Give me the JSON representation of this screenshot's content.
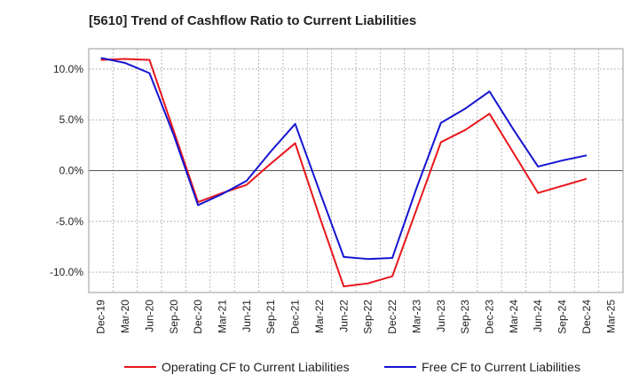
{
  "chart_data": {
    "type": "line",
    "title": "[5610]  Trend of Cashflow Ratio to Current Liabilities",
    "x": [
      "Dec-19",
      "Mar-20",
      "Jun-20",
      "Sep-20",
      "Dec-20",
      "Mar-21",
      "Jun-21",
      "Sep-21",
      "Dec-21",
      "Mar-22",
      "Jun-22",
      "Sep-22",
      "Dec-22",
      "Mar-23",
      "Jun-23",
      "Sep-23",
      "Dec-23",
      "Mar-24",
      "Jun-24",
      "Sep-24",
      "Dec-24",
      "Mar-25"
    ],
    "xlabel": "",
    "ylabel": "",
    "ylim": [
      -12.0,
      12.0
    ],
    "yticks": [
      10.0,
      5.0,
      0.0,
      -5.0,
      -10.0
    ],
    "ytick_labels": [
      "10.0%",
      "5.0%",
      "0.0%",
      "-5.0%",
      "-10.0%"
    ],
    "grid": true,
    "legend_position": "bottom",
    "series": [
      {
        "name": "Operating CF to Current Liabilities",
        "color": "#e8161b",
        "values": [
          10.9,
          11.0,
          10.9,
          3.9,
          -3.1,
          -2.2,
          -1.4,
          0.7,
          2.7,
          -4.5,
          -11.4,
          -11.1,
          -10.4,
          -3.8,
          2.8,
          4.0,
          5.6,
          1.7,
          -2.2,
          -1.5,
          -0.8,
          null
        ]
      },
      {
        "name": "Free CF to Current Liabilities",
        "color": "#1414d2",
        "values": [
          11.1,
          10.6,
          9.6,
          3.5,
          -3.4,
          -2.3,
          -1.0,
          1.9,
          4.6,
          -2.0,
          -8.5,
          -8.7,
          -8.6,
          -1.7,
          4.7,
          6.1,
          7.8,
          4.0,
          0.4,
          1.0,
          1.5,
          null
        ]
      }
    ]
  }
}
